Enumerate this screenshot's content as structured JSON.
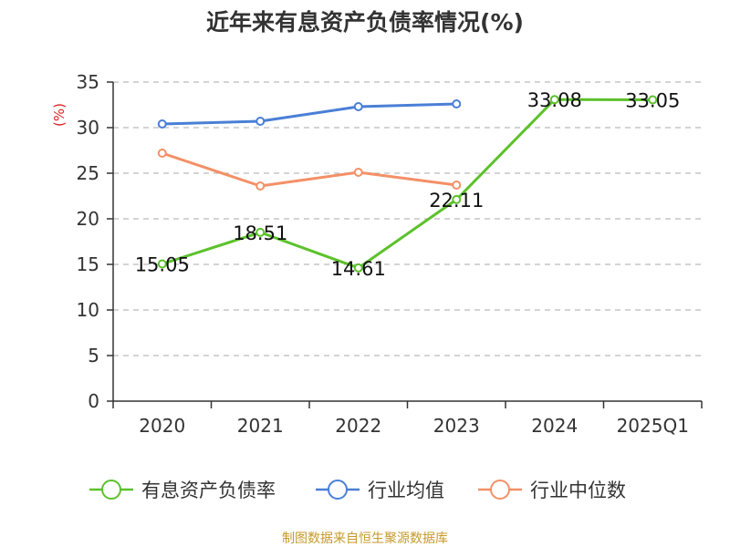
{
  "colors": {
    "series": [
      "#5cc12b",
      "#4a7fd6",
      "#f39067"
    ],
    "axis": "#333333",
    "grid": "#bbbbbb",
    "ylabel": "#e02020",
    "source": "#c59a2a"
  },
  "source_note": "制图数据来自恒生聚源数据库",
  "chart_data": {
    "type": "line",
    "title": "近年来有息资产负债率情况(%)",
    "xlabel": "",
    "ylabel": "(%)",
    "ylim": [
      0,
      35
    ],
    "yticks": [
      0,
      5,
      10,
      15,
      20,
      25,
      30,
      35
    ],
    "categories": [
      "2020",
      "2021",
      "2022",
      "2023",
      "2024",
      "2025Q1"
    ],
    "grid": "horizontal dashed",
    "legend_position": "bottom",
    "series": [
      {
        "name": "有息资产负债率",
        "values": [
          15.05,
          18.51,
          14.61,
          22.11,
          33.08,
          33.05
        ],
        "data_labels": [
          "15.05",
          "18.51",
          "14.61",
          "22.11",
          "33.08",
          "33.05"
        ]
      },
      {
        "name": "行业均值",
        "values": [
          30.4,
          30.7,
          32.3,
          32.6,
          null,
          null
        ]
      },
      {
        "name": "行业中位数",
        "values": [
          27.2,
          23.6,
          25.1,
          23.7,
          null,
          null
        ]
      }
    ]
  }
}
